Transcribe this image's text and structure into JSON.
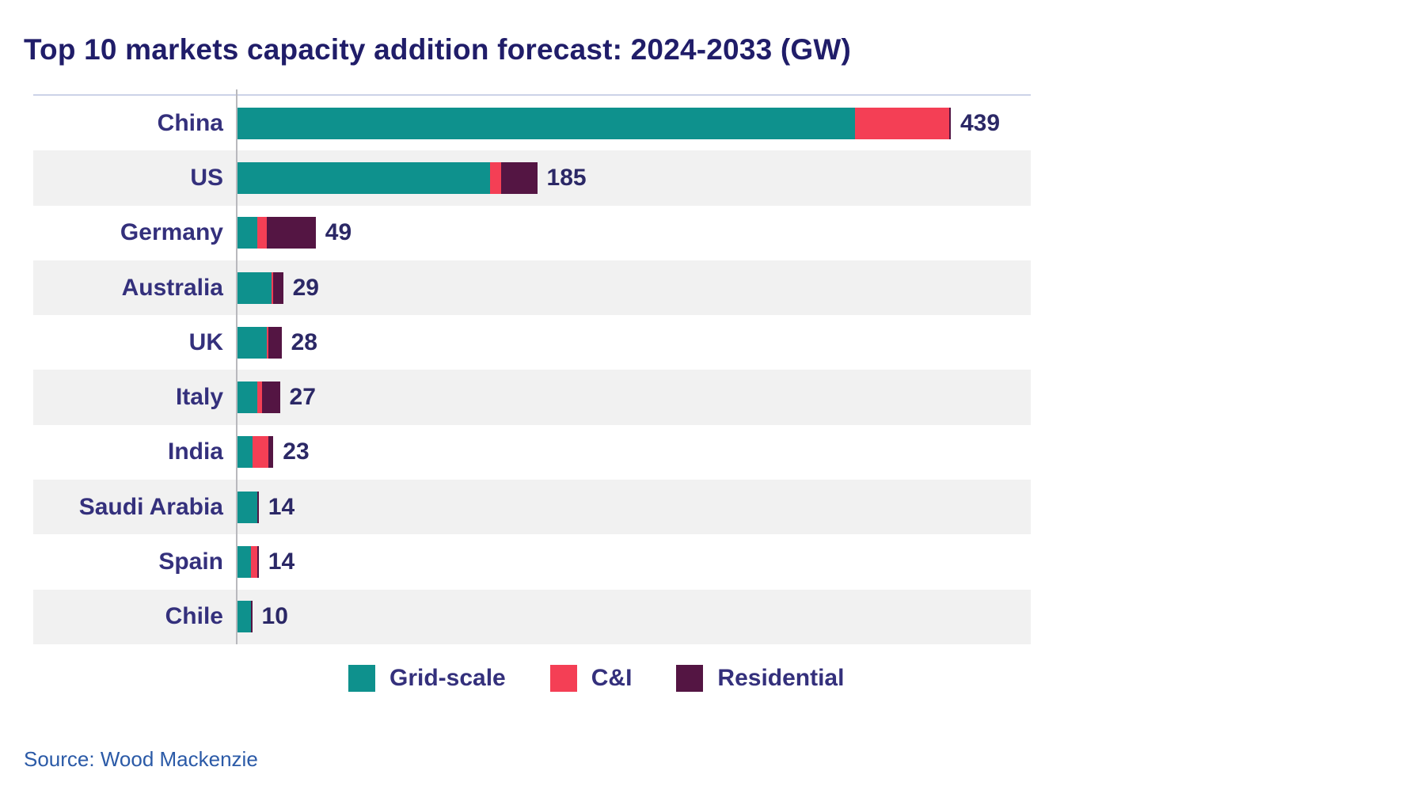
{
  "title": "Top 10 markets capacity addition forecast: 2024-2033 (GW)",
  "source": "Source: Wood Mackenzie",
  "colors": {
    "grid_scale": "#0e918d",
    "c_and_i": "#f43f55",
    "residential": "#541543",
    "title_text": "#201d69",
    "label_text": "#34307c",
    "value_text": "#2b2866",
    "source_text": "#2b5aa7",
    "row_stripe": "#f1f1f1",
    "axis_line": "#b9b9bd",
    "top_border": "#ccd3e8"
  },
  "chart_data": {
    "type": "bar",
    "orientation": "horizontal",
    "stacked": true,
    "unit": "GW",
    "title": "Top 10 markets capacity addition forecast: 2024-2033 (GW)",
    "xlabel": "",
    "ylabel": "",
    "xlim": [
      0,
      490
    ],
    "grid": false,
    "legend_position": "bottom",
    "categories": [
      "China",
      "US",
      "Germany",
      "Australia",
      "UK",
      "Italy",
      "India",
      "Saudi Arabia",
      "Spain",
      "Chile"
    ],
    "totals": [
      439,
      185,
      49,
      29,
      28,
      27,
      23,
      14,
      14,
      10
    ],
    "series": [
      {
        "name": "Grid-scale",
        "color": "#0e918d",
        "values": [
          380,
          156,
          13,
          22,
          19,
          13,
          10,
          13,
          9,
          9
        ]
      },
      {
        "name": "C&I",
        "color": "#f43f55",
        "values": [
          58,
          7,
          6,
          1,
          1,
          3,
          10,
          0,
          4,
          0
        ]
      },
      {
        "name": "Residential",
        "color": "#541543",
        "values": [
          1,
          22,
          30,
          6,
          8,
          11,
          3,
          1,
          1,
          1
        ]
      }
    ]
  }
}
